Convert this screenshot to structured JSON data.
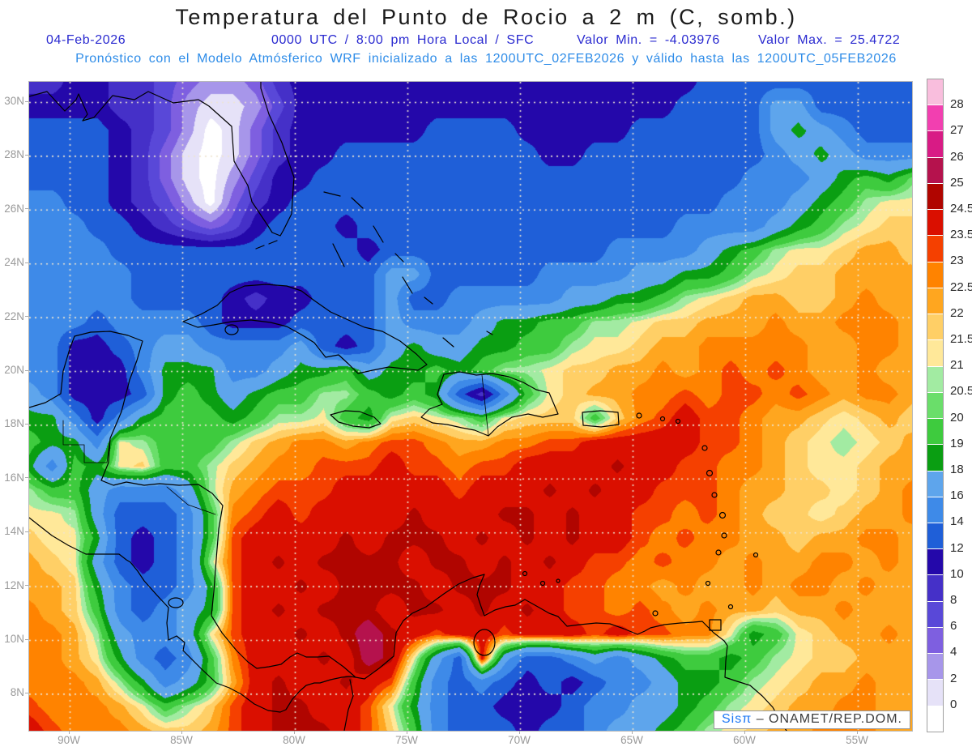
{
  "title": "Temperatura del Punto de Rocio a 2 m (C, somb.)",
  "header": {
    "date": "04-Feb-2026",
    "time_info": "0000 UTC / 8:00 pm Hora Local / SFC",
    "min_label": "Valor Min. = -4.03976",
    "max_label": "Valor Max. = 25.4722",
    "model_line": "Pronóstico con el Modelo Atmósferico WRF inicializado a las 1200UTC_02FEB2026 y válido hasta las  1200UTC_05FEB2026"
  },
  "watermark": {
    "brand": "Sisπ",
    "separator": "–",
    "org": "ONAMET/REP.DOM."
  },
  "axes": {
    "lat_labels": [
      "30N",
      "28N",
      "26N",
      "24N",
      "22N",
      "20N",
      "18N",
      "16N",
      "14N",
      "12N",
      "10N",
      "8N"
    ],
    "lon_labels": [
      "90W",
      "85W",
      "80W",
      "75W",
      "70W",
      "65W",
      "60W",
      "55W"
    ]
  },
  "colors": {
    "title_text": "#1a1a1a",
    "header_line1": "#2a2ad0",
    "header_line2": "#2e8ce8",
    "axis_text": "#9a9a9a",
    "gridline_dots": "#efe6d2",
    "coastline": "#000000",
    "watermark_brand": "#1e78f5"
  },
  "chart_data": {
    "type": "heatmap",
    "title": "Temperatura del Punto de Rocio a 2 m (C, somb.)",
    "units": "C",
    "value_min": -4.03976,
    "value_max": 25.4722,
    "lat_range_north_to_south": [
      30.75,
      6.65
    ],
    "lon_range_west_to_east": [
      -91.8,
      -52.6
    ],
    "grid_lat_step_deg": 2,
    "grid_lon_step_deg": 5,
    "levels": [
      0,
      2,
      4,
      6,
      8,
      10,
      12,
      14,
      16,
      18,
      19,
      20,
      20.5,
      21,
      21.5,
      22,
      22.5,
      23,
      23.5,
      24.5,
      25,
      26,
      27,
      28
    ],
    "palette": [
      "#ffffff",
      "#e6e2f8",
      "#a796ea",
      "#7e5fe0",
      "#5948d8",
      "#4530c8",
      "#2408aa",
      "#1f5fd8",
      "#3e8ae8",
      "#5ea5ec",
      "#0a9e12",
      "#3ecb3e",
      "#6ade6a",
      "#a2eba2",
      "#ffe899",
      "#ffcf66",
      "#ffa61f",
      "#ff8300",
      "#f54000",
      "#da0f00",
      "#b00500",
      "#b5124d",
      "#d81b85",
      "#f23fb0",
      "#f9bedd"
    ],
    "values": [
      [
        9,
        9,
        11,
        11,
        9,
        9,
        7,
        5,
        3,
        3,
        5,
        9,
        11,
        11,
        11,
        11,
        11,
        11,
        11,
        11,
        11,
        11,
        11,
        11,
        11,
        11,
        11,
        11,
        11,
        11,
        13,
        13,
        13,
        13,
        13,
        13,
        13,
        13,
        13,
        13
      ],
      [
        11,
        11,
        11,
        11,
        9,
        9,
        7,
        3,
        1,
        1,
        3,
        7,
        11,
        11,
        11,
        11,
        11,
        11,
        11,
        11,
        11,
        11,
        11,
        11,
        11,
        11,
        11,
        11,
        11,
        13,
        13,
        13,
        13,
        17,
        17,
        13,
        13,
        13,
        13,
        13
      ],
      [
        13,
        13,
        13,
        13,
        11,
        9,
        7,
        3,
        -1,
        1,
        5,
        9,
        11,
        11,
        11,
        11,
        11,
        11,
        13,
        13,
        13,
        13,
        11,
        11,
        11,
        11,
        11,
        13,
        13,
        13,
        13,
        13,
        13,
        17,
        18.5,
        17,
        15,
        13,
        13,
        13
      ],
      [
        13,
        13,
        13,
        13,
        11,
        9,
        5,
        1,
        -1,
        1,
        5,
        9,
        11,
        11,
        13,
        13,
        13,
        13,
        13,
        13,
        13,
        13,
        13,
        11,
        11,
        13,
        13,
        13,
        13,
        13,
        13,
        13,
        13,
        15,
        17,
        18.5,
        17,
        15,
        15,
        15
      ],
      [
        13,
        13,
        13,
        13,
        11,
        9,
        5,
        1,
        -1,
        3,
        7,
        11,
        11,
        13,
        13,
        13,
        13,
        13,
        13,
        13,
        13,
        13,
        13,
        13,
        13,
        13,
        13,
        13,
        13,
        13,
        13,
        13,
        15,
        15,
        15,
        17,
        18.5,
        19.5,
        18.5,
        20.2
      ],
      [
        15,
        15,
        13,
        13,
        11,
        9,
        7,
        3,
        -1,
        5,
        9,
        11,
        13,
        13,
        13,
        13,
        13,
        13,
        13,
        13,
        13,
        13,
        13,
        13,
        13,
        13,
        13,
        13,
        13,
        13,
        13,
        15,
        15,
        15,
        17,
        18.5,
        19.5,
        20.7,
        21.2,
        21.2
      ],
      [
        15,
        15,
        15,
        13,
        13,
        11,
        9,
        7,
        5,
        7,
        11,
        13,
        13,
        13,
        11,
        13,
        13,
        13,
        13,
        13,
        13,
        13,
        13,
        13,
        13,
        13,
        13,
        13,
        13,
        15,
        15,
        15,
        15,
        17,
        18.5,
        19.5,
        20.7,
        21.2,
        21.7,
        21.7
      ],
      [
        15,
        15,
        15,
        15,
        13,
        13,
        13,
        13,
        13,
        13,
        13,
        13,
        13,
        13,
        13,
        11,
        13,
        13,
        13,
        13,
        13,
        13,
        13,
        13,
        13,
        13,
        15,
        15,
        15,
        15,
        17,
        18.5,
        19.5,
        20.7,
        21.2,
        21.2,
        21.7,
        22.2,
        22.2,
        21.7
      ],
      [
        15,
        15,
        15,
        15,
        15,
        13,
        13,
        13,
        13,
        13,
        13,
        13,
        13,
        13,
        13,
        13,
        17,
        17,
        13,
        13,
        13,
        13,
        13,
        15,
        15,
        15,
        15,
        17,
        17,
        18.5,
        18.5,
        19.5,
        20.7,
        21.2,
        21.7,
        21.7,
        22.2,
        22.2,
        22.2,
        22.2
      ],
      [
        15,
        15,
        15,
        15,
        15,
        13,
        13,
        13,
        13,
        11,
        9,
        11,
        11,
        13,
        13,
        13,
        17,
        13,
        13,
        15,
        15,
        15,
        15,
        15,
        17,
        17,
        18.5,
        18.5,
        19.5,
        20.7,
        21.2,
        21.7,
        22.2,
        22.2,
        21.7,
        21.7,
        22.2,
        22.7,
        22.2,
        22.2
      ],
      [
        15,
        15,
        15,
        13,
        15,
        15,
        15,
        15,
        13,
        11,
        11,
        11,
        13,
        13,
        13,
        13,
        17,
        15,
        15,
        15,
        17,
        18.5,
        18.5,
        19.5,
        19.5,
        20.7,
        20.7,
        21.2,
        21.7,
        21.7,
        22.2,
        22.2,
        22.2,
        22.7,
        22.2,
        22.2,
        22.7,
        22.7,
        22.7,
        22.2
      ],
      [
        15,
        15,
        11,
        11,
        13,
        15,
        17,
        17,
        15,
        15,
        15,
        15,
        17,
        13,
        11,
        13,
        17,
        18.5,
        17,
        17,
        18.5,
        18.5,
        19.5,
        19.5,
        20.7,
        21.2,
        21.2,
        21.7,
        22.2,
        22.2,
        22.7,
        22.7,
        22.7,
        22.7,
        22.7,
        22.2,
        22.2,
        22.7,
        22.7,
        22.2
      ],
      [
        15,
        15,
        11,
        11,
        11,
        15,
        18.5,
        18.5,
        18.5,
        15,
        15,
        17,
        18.5,
        18.5,
        19.5,
        17,
        18.5,
        18.5,
        19.5,
        18.5,
        19.5,
        20.7,
        20.7,
        21.2,
        21.7,
        21.7,
        22.2,
        22.2,
        22.7,
        22.2,
        22.7,
        23.2,
        22.7,
        23.2,
        22.7,
        22.2,
        22.2,
        22.7,
        22.2,
        22.2
      ],
      [
        17,
        15,
        11,
        11,
        11,
        13,
        18.5,
        19.5,
        18.5,
        17,
        18.5,
        19.5,
        19.5,
        20.7,
        20.7,
        19.5,
        18.5,
        19.5,
        18.5,
        13,
        9,
        15,
        19.5,
        21.2,
        21.7,
        22.2,
        22.2,
        22.7,
        22.7,
        23.2,
        22.7,
        23.2,
        23.2,
        22.7,
        23.2,
        22.7,
        22.2,
        22.7,
        22.7,
        22.2
      ],
      [
        18.5,
        18.5,
        15,
        11,
        15,
        18.5,
        19.5,
        19.5,
        19.5,
        18.5,
        19.5,
        20.7,
        20.7,
        21.2,
        19.5,
        18.5,
        21.2,
        21.7,
        21.2,
        20.7,
        19.5,
        21.2,
        21.7,
        21.7,
        21.7,
        19.5,
        21.7,
        22.7,
        23.2,
        24,
        23.2,
        23.2,
        22.7,
        22.2,
        22.2,
        21.7,
        21.2,
        21.7,
        22.2,
        21.7
      ],
      [
        19.5,
        18.5,
        18.5,
        15,
        21.2,
        20.7,
        19.5,
        19.5,
        19.5,
        20.7,
        21.7,
        22.2,
        22.7,
        22.7,
        22.2,
        22.7,
        23.2,
        23.2,
        22.7,
        22.2,
        22.2,
        22.7,
        22.7,
        23.2,
        23.2,
        24,
        24,
        24,
        24,
        24,
        23.2,
        23.2,
        22.7,
        22.2,
        21.7,
        21.2,
        20.7,
        21.2,
        21.7,
        22.2
      ],
      [
        18.5,
        15,
        19.5,
        18.5,
        21.2,
        21.7,
        19.5,
        19.5,
        20.7,
        21.7,
        22.2,
        22.7,
        22.7,
        23.2,
        23.2,
        23.2,
        24,
        23.2,
        23.2,
        22.7,
        23.2,
        23.2,
        24,
        24,
        24,
        24,
        24.7,
        24,
        24,
        23.2,
        23.2,
        22.7,
        22.7,
        22.2,
        21.7,
        21.2,
        21.2,
        21.7,
        22.2,
        22.2
      ],
      [
        20.7,
        19.5,
        19.5,
        17,
        15,
        15,
        15,
        17,
        20.7,
        22.2,
        22.7,
        23.2,
        23.2,
        23.2,
        24,
        24,
        24,
        24,
        24,
        23.2,
        24,
        24,
        24,
        24.7,
        24,
        24.7,
        24,
        24,
        23.2,
        23.2,
        23.2,
        22.7,
        22.2,
        22.2,
        21.7,
        21.7,
        21.2,
        21.7,
        22.2,
        22.7
      ],
      [
        21.2,
        21.2,
        20.7,
        17,
        13,
        13,
        13,
        15,
        19.5,
        22.7,
        23.2,
        24,
        23.2,
        24,
        24,
        24,
        24,
        24.7,
        24,
        24,
        24,
        24.7,
        24.7,
        24,
        24.7,
        24,
        24,
        23.2,
        23.2,
        22.7,
        23.2,
        22.7,
        22.2,
        21.7,
        21.7,
        21.2,
        21.7,
        22.2,
        22.2,
        22.7
      ],
      [
        21.7,
        21.2,
        21.2,
        18.5,
        13,
        11,
        13,
        15,
        19.5,
        23.2,
        24,
        24,
        24,
        24,
        24.7,
        24,
        24.7,
        24.7,
        24.7,
        24,
        24.7,
        24,
        24.7,
        24,
        24.7,
        24,
        24,
        23.2,
        22.7,
        23.2,
        22.7,
        22.7,
        22.2,
        22.2,
        21.7,
        22.2,
        22.2,
        22.7,
        22.7,
        22.2
      ],
      [
        22.2,
        21.7,
        21.2,
        17,
        13,
        11,
        13,
        15,
        20.7,
        23.2,
        24,
        24.7,
        24,
        24.7,
        24.7,
        24.7,
        24.7,
        24,
        24.7,
        24.7,
        24,
        24.7,
        24,
        24.7,
        24,
        23.2,
        23.2,
        22.7,
        23.2,
        22.7,
        22.7,
        22.2,
        22.7,
        22.2,
        22.2,
        22.7,
        22.7,
        22.2,
        22.7,
        22.2
      ],
      [
        22.2,
        22.2,
        21.7,
        18.5,
        15,
        13,
        13,
        15,
        18.5,
        23.2,
        24,
        24,
        24.7,
        24,
        24.7,
        24.7,
        24.7,
        24.7,
        24,
        24.7,
        24.7,
        24.7,
        24,
        24,
        23.2,
        23.2,
        22.7,
        22.7,
        22.2,
        22.7,
        22.2,
        22.2,
        22.7,
        22.2,
        22.7,
        22.7,
        22.2,
        22.7,
        22.2,
        22.2
      ],
      [
        22.7,
        22.2,
        21.7,
        19.5,
        15,
        13,
        15,
        17,
        18.5,
        23.2,
        24,
        24.7,
        24,
        24.7,
        24.7,
        24.7,
        24,
        24.7,
        24.7,
        24,
        24.7,
        24,
        24.7,
        24,
        23.2,
        23.2,
        22.7,
        23.2,
        22.7,
        22.2,
        22.7,
        22.2,
        22.2,
        21.7,
        22.2,
        22.2,
        22.7,
        22.2,
        22.2,
        22.2
      ],
      [
        22.7,
        22.7,
        22.2,
        20.7,
        17,
        15,
        15,
        17,
        21.2,
        23.2,
        24,
        24,
        24.7,
        24,
        24.7,
        25.5,
        24.7,
        24,
        23.2,
        24,
        24,
        23.2,
        24,
        24,
        24,
        23.2,
        24,
        23.2,
        23.2,
        22.7,
        22.7,
        21.2,
        18.5,
        19.5,
        21.2,
        21.7,
        22.2,
        22.2,
        22.7,
        22.2
      ],
      [
        22.7,
        22.7,
        22.2,
        21.2,
        18.5,
        15,
        13,
        15,
        19.5,
        22.7,
        24,
        24,
        24,
        24.7,
        24,
        25.5,
        24.7,
        21.2,
        17,
        13,
        24,
        17,
        13,
        13,
        15,
        17,
        15,
        17,
        18.5,
        19.5,
        19.5,
        18.5,
        19.5,
        20.7,
        21.2,
        21.7,
        21.7,
        22.2,
        22.2,
        22.2
      ],
      [
        22.7,
        22.7,
        22.7,
        22.2,
        20.7,
        18.5,
        15,
        17,
        19.5,
        22.2,
        24,
        24.7,
        24,
        24,
        24.7,
        24,
        23.2,
        19.5,
        15,
        13,
        15,
        13,
        11,
        13,
        11,
        13,
        15,
        15,
        17,
        18.5,
        18.5,
        19.5,
        20.7,
        21.2,
        21.7,
        22.2,
        22.2,
        22.7,
        22.2,
        22.2
      ],
      [
        23.2,
        22.7,
        22.7,
        22.7,
        22.2,
        21.2,
        19.5,
        20.7,
        21.7,
        23.2,
        24,
        24.7,
        24.7,
        24,
        24,
        23.2,
        21.2,
        18.5,
        15,
        13,
        13,
        11,
        11,
        11,
        13,
        15,
        15,
        17,
        17,
        18.5,
        19.5,
        20.7,
        21.2,
        21.7,
        22.2,
        22.2,
        22.7,
        22.7,
        22.2,
        22.2
      ],
      [
        24,
        23.2,
        22.7,
        22.7,
        22.7,
        22.2,
        21.7,
        21.7,
        22.2,
        23.2,
        24,
        24.7,
        24.7,
        24.7,
        24,
        23.2,
        21.7,
        19.5,
        15,
        13,
        13,
        13,
        11,
        13,
        13,
        15,
        17,
        17,
        18.5,
        19.5,
        20.7,
        21.2,
        21.7,
        22.2,
        22.2,
        22.7,
        22.7,
        22.7,
        22.2,
        22.2
      ]
    ]
  }
}
